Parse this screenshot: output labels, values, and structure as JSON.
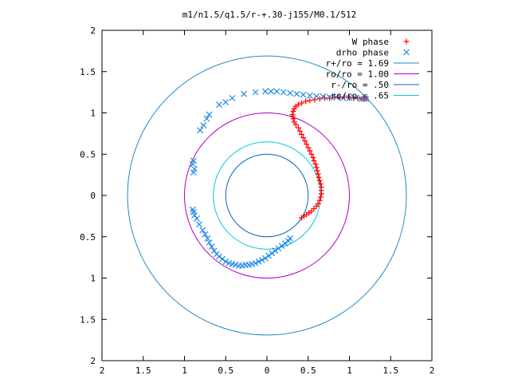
{
  "chart_data": {
    "type": "scatter",
    "title": "m1/n1.5/q1.5/r-+.30-j155/M0.1/512",
    "xlabel": "",
    "ylabel": "",
    "xlim": [
      -2,
      2
    ],
    "ylim": [
      -2,
      2
    ],
    "x_tick_values": [
      -2,
      -1.5,
      -1,
      -0.5,
      0,
      0.5,
      1,
      1.5,
      2
    ],
    "x_tick_labels": [
      "2",
      "1.5",
      "1",
      "0.5",
      "0",
      "0.5",
      "1",
      "1.5",
      "2"
    ],
    "y_tick_values": [
      2,
      1.5,
      1,
      0.5,
      0,
      -0.5,
      -1,
      -1.5,
      -2
    ],
    "y_tick_labels": [
      "2",
      "1.5",
      "1",
      "0.5",
      "0",
      "0.5",
      "1",
      "1.5",
      "2"
    ],
    "grid": false,
    "legend_position": "top-right",
    "series": [
      {
        "name": "W phase",
        "marker": "+",
        "color": "#ff0000",
        "points": [
          [
            0.42,
            -0.27
          ],
          [
            0.45,
            -0.25
          ],
          [
            0.48,
            -0.23
          ],
          [
            0.51,
            -0.21
          ],
          [
            0.54,
            -0.19
          ],
          [
            0.57,
            -0.16
          ],
          [
            0.6,
            -0.13
          ],
          [
            0.62,
            -0.1
          ],
          [
            0.64,
            -0.06
          ],
          [
            0.65,
            -0.02
          ],
          [
            0.66,
            0.02
          ],
          [
            0.66,
            0.06
          ],
          [
            0.66,
            0.1
          ],
          [
            0.65,
            0.14
          ],
          [
            0.64,
            0.18
          ],
          [
            0.63,
            0.22
          ],
          [
            0.62,
            0.26
          ],
          [
            0.61,
            0.3
          ],
          [
            0.6,
            0.34
          ],
          [
            0.59,
            0.38
          ],
          [
            0.57,
            0.42
          ],
          [
            0.56,
            0.46
          ],
          [
            0.54,
            0.5
          ],
          [
            0.52,
            0.54
          ],
          [
            0.5,
            0.58
          ],
          [
            0.48,
            0.62
          ],
          [
            0.46,
            0.66
          ],
          [
            0.44,
            0.7
          ],
          [
            0.42,
            0.74
          ],
          [
            0.4,
            0.78
          ],
          [
            0.38,
            0.82
          ],
          [
            0.35,
            0.86
          ],
          [
            0.33,
            0.89
          ],
          [
            0.32,
            0.93
          ],
          [
            0.31,
            0.96
          ],
          [
            0.31,
            0.98
          ],
          [
            0.32,
            1.02
          ],
          [
            0.33,
            1.05
          ],
          [
            0.35,
            1.08
          ],
          [
            0.38,
            1.1
          ],
          [
            0.42,
            1.12
          ],
          [
            0.47,
            1.14
          ],
          [
            0.52,
            1.15
          ],
          [
            0.58,
            1.16
          ],
          [
            0.64,
            1.17
          ],
          [
            0.7,
            1.18
          ],
          [
            0.76,
            1.18
          ],
          [
            0.82,
            1.19
          ],
          [
            0.88,
            1.19
          ],
          [
            0.94,
            1.19
          ],
          [
            1.0,
            1.18
          ],
          [
            1.05,
            1.18
          ],
          [
            1.1,
            1.18
          ],
          [
            1.15,
            1.17
          ],
          [
            1.18,
            1.17
          ],
          [
            1.2,
            1.17
          ]
        ]
      },
      {
        "name": "drho phase",
        "marker": "x",
        "color": "#1e8ae6",
        "points": [
          [
            0.28,
            -0.52
          ],
          [
            0.26,
            -0.55
          ],
          [
            0.22,
            -0.58
          ],
          [
            0.18,
            -0.61
          ],
          [
            0.14,
            -0.64
          ],
          [
            0.1,
            -0.67
          ],
          [
            0.06,
            -0.7
          ],
          [
            0.02,
            -0.73
          ],
          [
            -0.02,
            -0.76
          ],
          [
            -0.06,
            -0.78
          ],
          [
            -0.1,
            -0.8
          ],
          [
            -0.14,
            -0.82
          ],
          [
            -0.18,
            -0.83
          ],
          [
            -0.22,
            -0.84
          ],
          [
            -0.26,
            -0.84
          ],
          [
            -0.3,
            -0.85
          ],
          [
            -0.34,
            -0.85
          ],
          [
            -0.38,
            -0.84
          ],
          [
            -0.42,
            -0.83
          ],
          [
            -0.46,
            -0.82
          ],
          [
            -0.5,
            -0.8
          ],
          [
            -0.54,
            -0.77
          ],
          [
            -0.58,
            -0.74
          ],
          [
            -0.61,
            -0.71
          ],
          [
            -0.64,
            -0.67
          ],
          [
            -0.67,
            -0.62
          ],
          [
            -0.7,
            -0.57
          ],
          [
            -0.72,
            -0.52
          ],
          [
            -0.75,
            -0.47
          ],
          [
            -0.78,
            -0.42
          ],
          [
            -0.82,
            -0.35
          ],
          [
            -0.85,
            -0.28
          ],
          [
            -0.88,
            -0.24
          ],
          [
            -0.89,
            -0.2
          ],
          [
            -0.9,
            -0.17
          ],
          [
            -0.89,
            0.28
          ],
          [
            -0.88,
            0.32
          ],
          [
            -0.9,
            0.38
          ],
          [
            -0.89,
            0.42
          ],
          [
            -0.81,
            0.79
          ],
          [
            -0.77,
            0.85
          ],
          [
            -0.73,
            0.93
          ],
          [
            -0.7,
            0.98
          ],
          [
            -0.58,
            1.1
          ],
          [
            -0.5,
            1.13
          ],
          [
            -0.42,
            1.18
          ],
          [
            -0.28,
            1.23
          ],
          [
            -0.14,
            1.25
          ],
          [
            -0.02,
            1.26
          ],
          [
            0.05,
            1.26
          ],
          [
            0.12,
            1.26
          ],
          [
            0.2,
            1.25
          ],
          [
            0.28,
            1.24
          ],
          [
            0.36,
            1.23
          ],
          [
            0.44,
            1.22
          ],
          [
            0.52,
            1.21
          ],
          [
            0.6,
            1.2
          ],
          [
            0.68,
            1.2
          ],
          [
            0.76,
            1.19
          ],
          [
            0.84,
            1.19
          ],
          [
            0.92,
            1.18
          ],
          [
            1.0,
            1.18
          ],
          [
            1.08,
            1.18
          ],
          [
            1.15,
            1.17
          ],
          [
            1.2,
            1.17
          ]
        ]
      },
      {
        "name": "r+/ro = 1.69",
        "type": "circle",
        "radius": 1.69,
        "color": "#1e8ac8"
      },
      {
        "name": "ro/ro = 1.00",
        "type": "circle",
        "radius": 1.0,
        "color": "#b000c0"
      },
      {
        "name": "r-/ro = .50",
        "type": "circle",
        "radius": 0.5,
        "color": "#1060c0"
      },
      {
        "name": "rc/ro = .65",
        "type": "circle",
        "radius": 0.65,
        "color": "#00c8d8"
      }
    ]
  }
}
